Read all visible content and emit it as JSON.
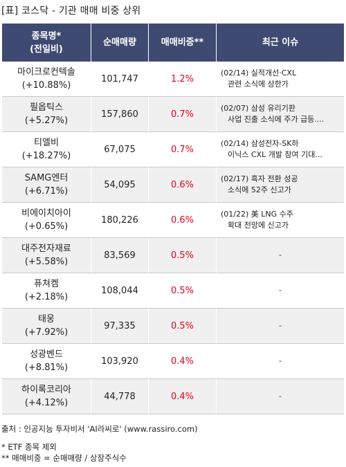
{
  "title": "[표] 코스닥 - 기관 매매 비중 상위",
  "headers": {
    "name_line1": "종목명*",
    "name_line2": "(전일비)",
    "volume": "순매매량",
    "ratio": "매매비중**",
    "issue": "최근 이슈"
  },
  "rows": [
    {
      "name": "마이크로컨텍솔",
      "change": "(+10.88%)",
      "volume": "101,747",
      "ratio": "1.2%",
      "issue1": "(02/14) 실적개선·CXL",
      "issue2": "관련 소식에 상한가"
    },
    {
      "name": "필옵틱스",
      "change": "(+5.27%)",
      "volume": "157,860",
      "ratio": "0.7%",
      "issue1": "(02/07) 삼성 유리기판",
      "issue2": "사업 진출 소식에 주가 급등...."
    },
    {
      "name": "티엘비",
      "change": "(+18.27%)",
      "volume": "67,075",
      "ratio": "0.7%",
      "issue1": "(02/14) 삼성전자-SK하",
      "issue2": "이닉스 CXL 개발 참여 기대..."
    },
    {
      "name": "SAMG엔터",
      "change": "(+6.71%)",
      "volume": "54,095",
      "ratio": "0.6%",
      "issue1": "(02/17) 흑자 전환 성공",
      "issue2": "소식에 52주 신고가"
    },
    {
      "name": "비에이치아이",
      "change": "(+0.65%)",
      "volume": "180,226",
      "ratio": "0.6%",
      "issue1": "(01/22) 美 LNG 수주",
      "issue2": "확대 전망에 신고가"
    },
    {
      "name": "대주전자재료",
      "change": "(+5.58%)",
      "volume": "83,569",
      "ratio": "0.5%",
      "issue1": "-",
      "issue2": ""
    },
    {
      "name": "퓨쳐켐",
      "change": "(+2.18%)",
      "volume": "108,044",
      "ratio": "0.5%",
      "issue1": "-",
      "issue2": ""
    },
    {
      "name": "태웅",
      "change": "(+7.92%)",
      "volume": "97,335",
      "ratio": "0.5%",
      "issue1": "-",
      "issue2": ""
    },
    {
      "name": "성광벤드",
      "change": "(+8.81%)",
      "volume": "103,920",
      "ratio": "0.4%",
      "issue1": "-",
      "issue2": ""
    },
    {
      "name": "하이록코리아",
      "change": "(+4.12%)",
      "volume": "44,778",
      "ratio": "0.4%",
      "issue1": "-",
      "issue2": ""
    }
  ],
  "footer": {
    "source": "출처 : 인공지능 투자비서 'AI라씨로' (www.rassiro.com)",
    "note1": "* ETF 종목 제외",
    "note2": "** 매매비중 = 순매매량 / 상장주식수"
  },
  "colors": {
    "header_bg": "#3f4a72",
    "ratio_text": "#e8001e",
    "alt_row_bg": "#f0f0f0"
  }
}
